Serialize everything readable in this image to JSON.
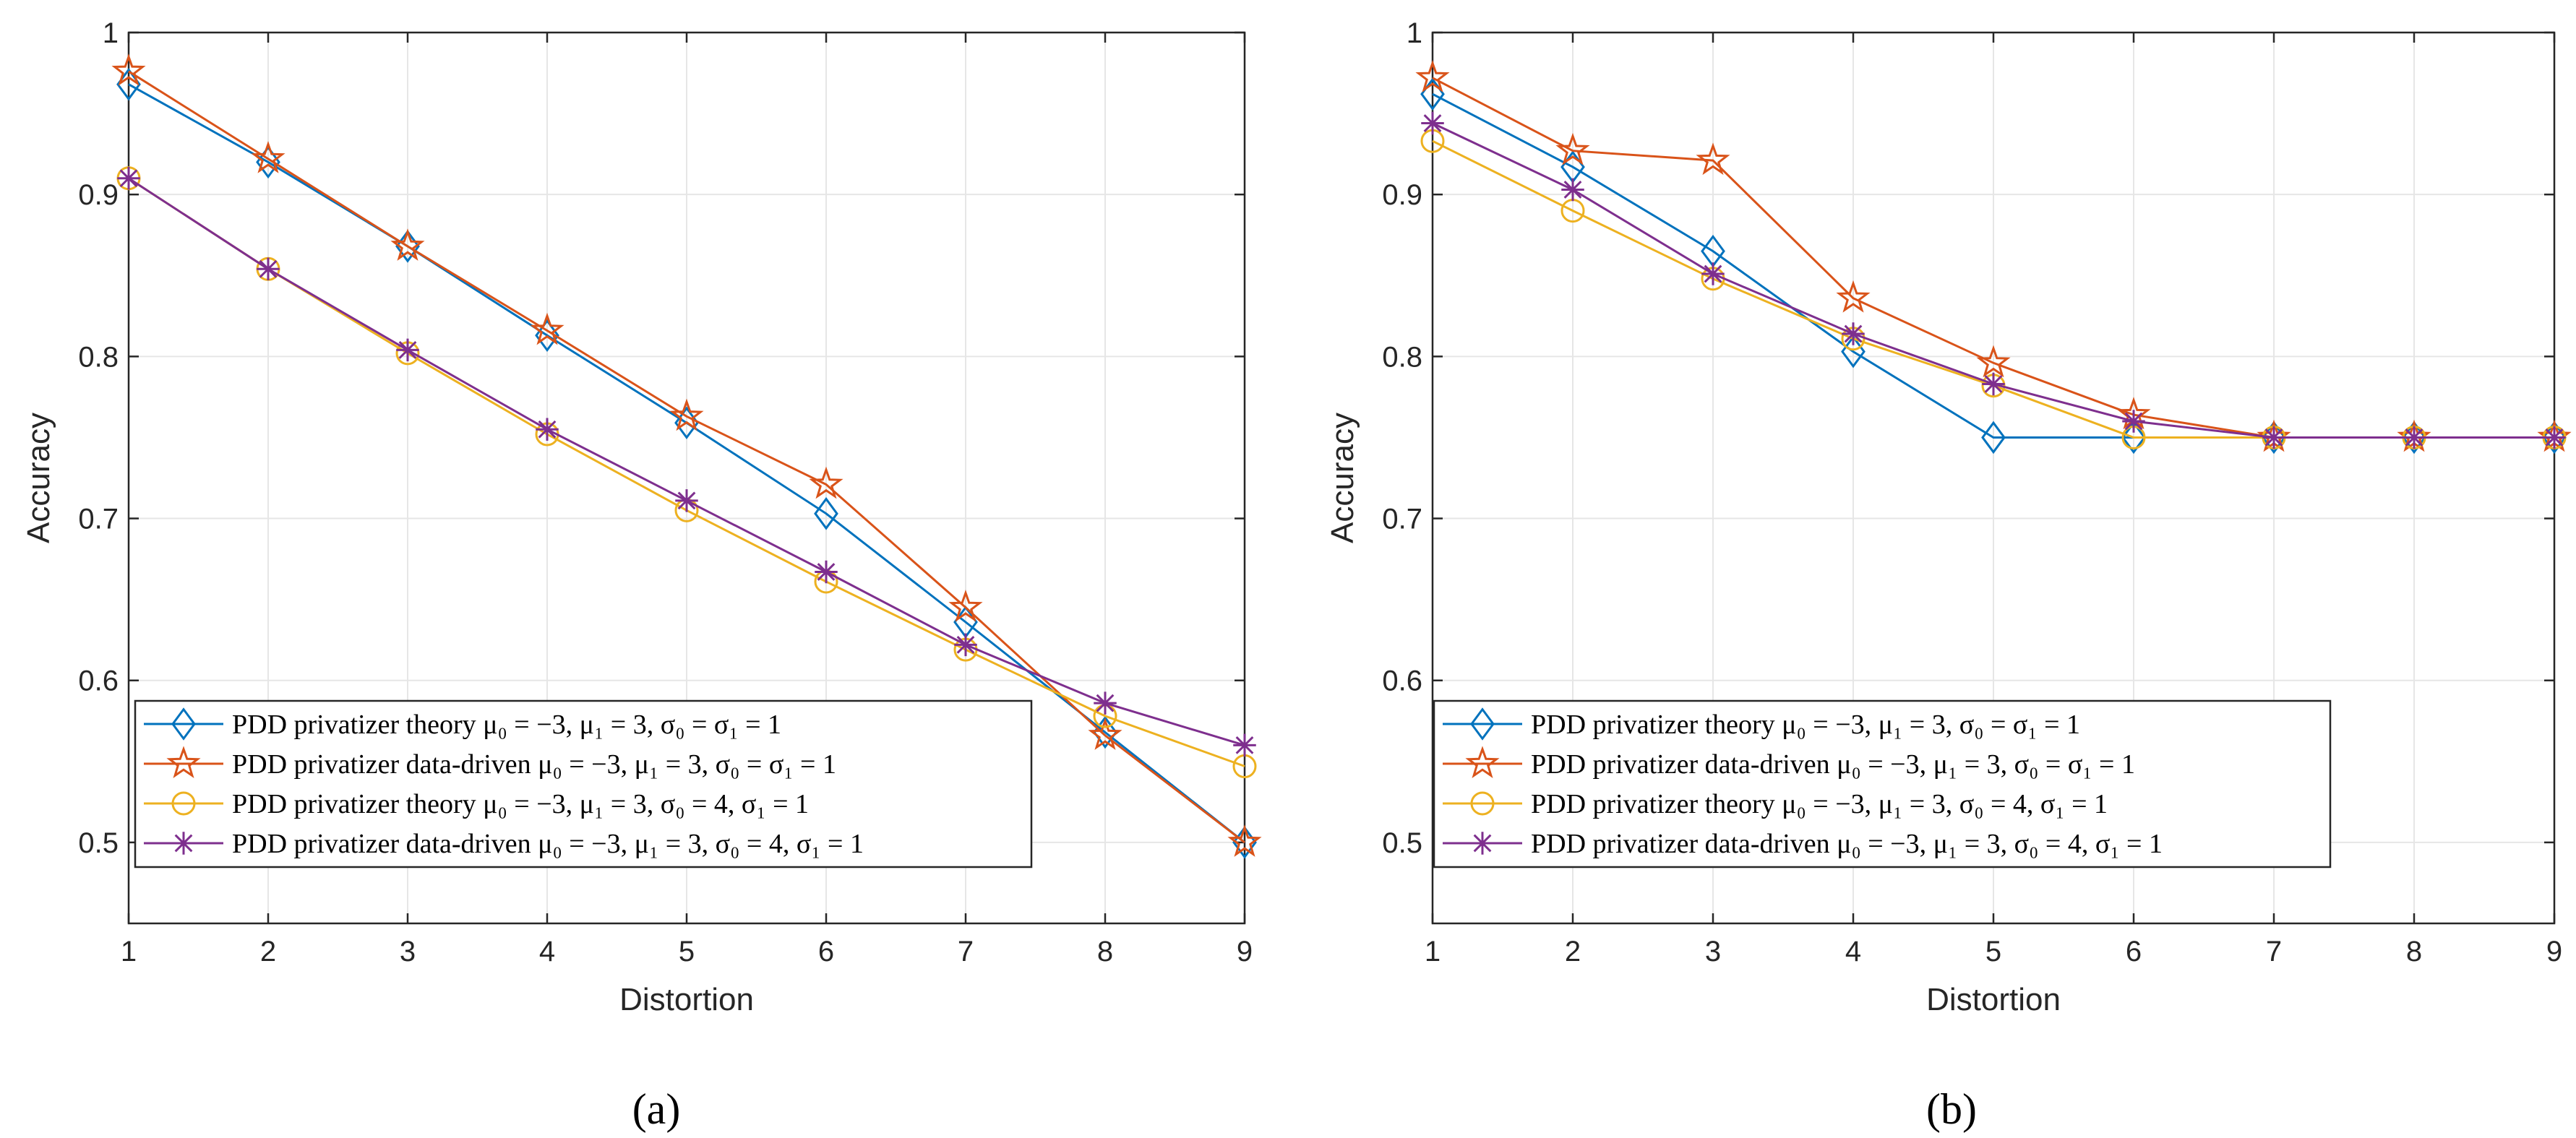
{
  "figure": {
    "legend_labels": [
      "PDD privatizer theory μ₀ = −3, μ₁ = 3, σ₀ = σ₁ = 1",
      "PDD privatizer data-driven μ₀ = −3, μ₁ = 3, σ₀ = σ₁ = 1",
      "PDD privatizer theory μ₀ = −3, μ₁ = 3, σ₀ = 4, σ₁ = 1",
      "PDD privatizer data-driven μ₀ = −3, μ₁ = 3, σ₀ = 4, σ₁ = 1"
    ],
    "series_colors": [
      "#0072BD",
      "#D95319",
      "#EDB120",
      "#7E2F8E"
    ],
    "series_markers": [
      "diamond",
      "pentagram",
      "circle",
      "asterisk"
    ]
  },
  "chart_data": [
    {
      "type": "line",
      "caption": "(a)",
      "xlabel": "Distortion",
      "ylabel": "Accuracy",
      "xlim": [
        1,
        9
      ],
      "ylim": [
        0.45,
        1.0
      ],
      "xticks": [
        1,
        2,
        3,
        4,
        5,
        6,
        7,
        8,
        9
      ],
      "yticks": [
        0.5,
        0.6,
        0.7,
        0.8,
        0.9,
        1
      ],
      "ytick_labels": [
        "0.5",
        "0.6",
        "0.7",
        "0.8",
        "0.9",
        "1"
      ],
      "grid": true,
      "legend_position": "bottom-left",
      "x": [
        1,
        2,
        3,
        4,
        5,
        6,
        7,
        8,
        9
      ],
      "series": [
        {
          "name": "PDD privatizer theory μ₀ = −3, μ₁ = 3, σ₀ = σ₁ = 1",
          "values": [
            0.968,
            0.92,
            0.868,
            0.813,
            0.759,
            0.703,
            0.636,
            0.568,
            0.5
          ]
        },
        {
          "name": "PDD privatizer data-driven μ₀ = −3, μ₁ = 3, σ₀ = σ₁ = 1",
          "values": [
            0.976,
            0.922,
            0.868,
            0.816,
            0.763,
            0.721,
            0.645,
            0.566,
            0.5
          ]
        },
        {
          "name": "PDD privatizer theory μ₀ = −3, μ₁ = 3, σ₀ = 4, σ₁ = 1",
          "values": [
            0.91,
            0.854,
            0.802,
            0.752,
            0.705,
            0.661,
            0.619,
            0.578,
            0.547
          ]
        },
        {
          "name": "PDD privatizer data-driven μ₀ = −3, μ₁ = 3, σ₀ = 4, σ₁ = 1",
          "values": [
            0.91,
            0.854,
            0.804,
            0.755,
            0.711,
            0.667,
            0.622,
            0.586,
            0.56
          ]
        }
      ]
    },
    {
      "type": "line",
      "caption": "(b)",
      "xlabel": "Distortion",
      "ylabel": "Accuracy",
      "xlim": [
        1,
        9
      ],
      "ylim": [
        0.45,
        1.0
      ],
      "xticks": [
        1,
        2,
        3,
        4,
        5,
        6,
        7,
        8,
        9
      ],
      "yticks": [
        0.5,
        0.6,
        0.7,
        0.8,
        0.9,
        1
      ],
      "ytick_labels": [
        "0.5",
        "0.6",
        "0.7",
        "0.8",
        "0.9",
        "1"
      ],
      "grid": true,
      "legend_position": "bottom-left",
      "x": [
        1,
        2,
        3,
        4,
        5,
        6,
        7,
        8,
        9
      ],
      "series": [
        {
          "name": "PDD privatizer theory μ₀ = −3, μ₁ = 3, σ₀ = σ₁ = 1",
          "values": [
            0.962,
            0.917,
            0.865,
            0.803,
            0.75,
            0.75,
            0.75,
            0.75,
            0.75
          ]
        },
        {
          "name": "PDD privatizer data-driven μ₀ = −3, μ₁ = 3, σ₀ = σ₁ = 1",
          "values": [
            0.972,
            0.927,
            0.921,
            0.836,
            0.796,
            0.764,
            0.75,
            0.75,
            0.75
          ]
        },
        {
          "name": "PDD privatizer theory μ₀ = −3, μ₁ = 3, σ₀ = 4, σ₁ = 1",
          "values": [
            0.933,
            0.89,
            0.848,
            0.811,
            0.782,
            0.75,
            0.75,
            0.75,
            0.75
          ]
        },
        {
          "name": "PDD privatizer data-driven μ₀ = −3, μ₁ = 3, σ₀ = 4, σ₁ = 1",
          "values": [
            0.944,
            0.903,
            0.851,
            0.814,
            0.783,
            0.76,
            0.75,
            0.75,
            0.75
          ]
        }
      ]
    }
  ]
}
